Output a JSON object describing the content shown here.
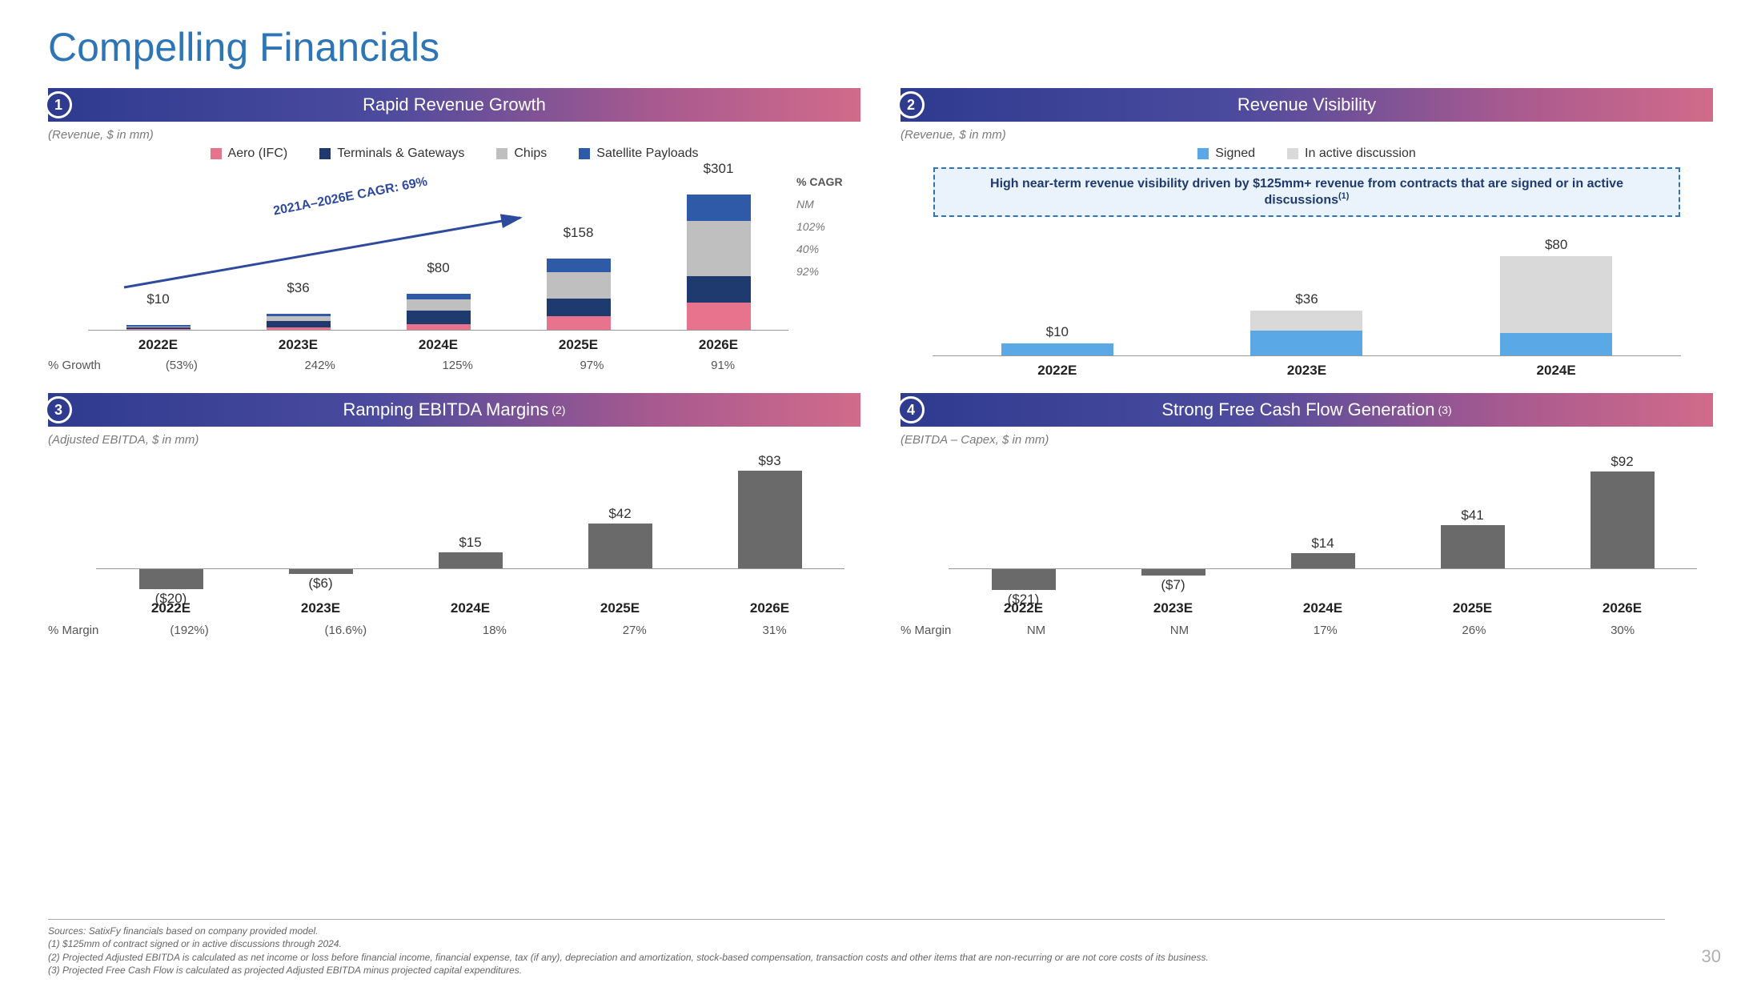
{
  "page": {
    "title": "Compelling Financials",
    "title_color": "#2e75b6",
    "title_fontsize": 50,
    "page_number": "30",
    "background": "#ffffff"
  },
  "header_gradient": [
    "#2e3b8f",
    "#4a4a9e",
    "#a85a8f",
    "#d16b8a"
  ],
  "panel1": {
    "number": "1",
    "title": "Rapid Revenue Growth",
    "subtitle": "(Revenue, $ in mm)",
    "legend": [
      {
        "label": "Aero (IFC)",
        "color": "#e8738c"
      },
      {
        "label": "Terminals & Gateways",
        "color": "#1f3a6e"
      },
      {
        "label": "Chips",
        "color": "#bfbfbf"
      },
      {
        "label": "Satellite Payloads",
        "color": "#2e5aa8"
      }
    ],
    "arrow_caption": "2021A–2026E CAGR: 69%",
    "arrow_color": "#2e4a9e",
    "type": "stacked-bar",
    "categories": [
      "2022E",
      "2023E",
      "2024E",
      "2025E",
      "2026E"
    ],
    "totals_labels": [
      "$10",
      "$36",
      "$80",
      "$158",
      "$301"
    ],
    "totals": [
      10,
      36,
      80,
      158,
      301
    ],
    "ymax": 320,
    "stack_colors": [
      "#e8738c",
      "#1f3a6e",
      "#bfbfbf",
      "#2e5aa8"
    ],
    "series_by_year": [
      [
        2,
        3,
        3,
        2
      ],
      [
        6,
        14,
        10,
        6
      ],
      [
        12,
        30,
        26,
        12
      ],
      [
        30,
        40,
        58,
        30
      ],
      [
        60,
        60,
        121,
        60
      ]
    ],
    "cagr_header": "% CAGR",
    "cagr_values": [
      "NM",
      "102%",
      "40%",
      "92%"
    ],
    "growth_label": "% Growth",
    "growth_values": [
      "(53%)",
      "242%",
      "125%",
      "97%",
      "91%"
    ]
  },
  "panel2": {
    "number": "2",
    "title": "Revenue Visibility",
    "subtitle": "(Revenue, $ in mm)",
    "legend": [
      {
        "label": "Signed",
        "color": "#5aa9e6"
      },
      {
        "label": "In active discussion",
        "color": "#d9d9d9"
      }
    ],
    "callout": "High near-term revenue visibility driven by $125mm+ revenue from contracts that are signed or in active discussions",
    "callout_sup": "(1)",
    "callout_border": "#2e75b6",
    "callout_bg": "#eaf3fb",
    "type": "stacked-bar",
    "categories": [
      "2022E",
      "2023E",
      "2024E"
    ],
    "totals_labels": [
      "$10",
      "$36",
      "$80"
    ],
    "totals": [
      10,
      36,
      80
    ],
    "ymax": 90,
    "stack_colors": [
      "#5aa9e6",
      "#d9d9d9"
    ],
    "series_by_year": [
      [
        10,
        0
      ],
      [
        20,
        16
      ],
      [
        18,
        62
      ]
    ]
  },
  "panel3": {
    "number": "3",
    "title": "Ramping EBITDA Margins",
    "title_sup": "(2)",
    "subtitle": "(Adjusted EBITDA, $ in mm)",
    "type": "bar-neg",
    "bar_color": "#6a6a6a",
    "categories": [
      "2022E",
      "2023E",
      "2024E",
      "2025E",
      "2026E"
    ],
    "values": [
      -20,
      -6,
      15,
      42,
      93
    ],
    "value_labels": [
      "($20)",
      "($6)",
      "$15",
      "$42",
      "$93"
    ],
    "ymin": -25,
    "ymax": 100,
    "margin_label": "% Margin",
    "margin_values": [
      "(192%)",
      "(16.6%)",
      "18%",
      "27%",
      "31%"
    ]
  },
  "panel4": {
    "number": "4",
    "title": "Strong Free Cash Flow Generation",
    "title_sup": "(3)",
    "subtitle": "(EBITDA – Capex, $ in mm)",
    "type": "bar-neg",
    "bar_color": "#6a6a6a",
    "categories": [
      "2022E",
      "2023E",
      "2024E",
      "2025E",
      "2026E"
    ],
    "values": [
      -21,
      -7,
      14,
      41,
      92
    ],
    "value_labels": [
      "($21)",
      "($7)",
      "$14",
      "$41",
      "$92"
    ],
    "ymin": -25,
    "ymax": 100,
    "margin_label": "% Margin",
    "margin_values": [
      "NM",
      "NM",
      "17%",
      "26%",
      "30%"
    ]
  },
  "footnotes": [
    "Sources: SatixFy financials based on company provided model.",
    "(1) $125mm of contract signed or in active discussions through 2024.",
    "(2) Projected Adjusted EBITDA is calculated as net income or loss before financial income, financial expense, tax (if any), depreciation and amortization, stock-based compensation, transaction costs and other items that are non-recurring or are not core costs of its business.",
    "(3) Projected Free Cash Flow is calculated as projected Adjusted EBITDA minus projected capital expenditures."
  ]
}
